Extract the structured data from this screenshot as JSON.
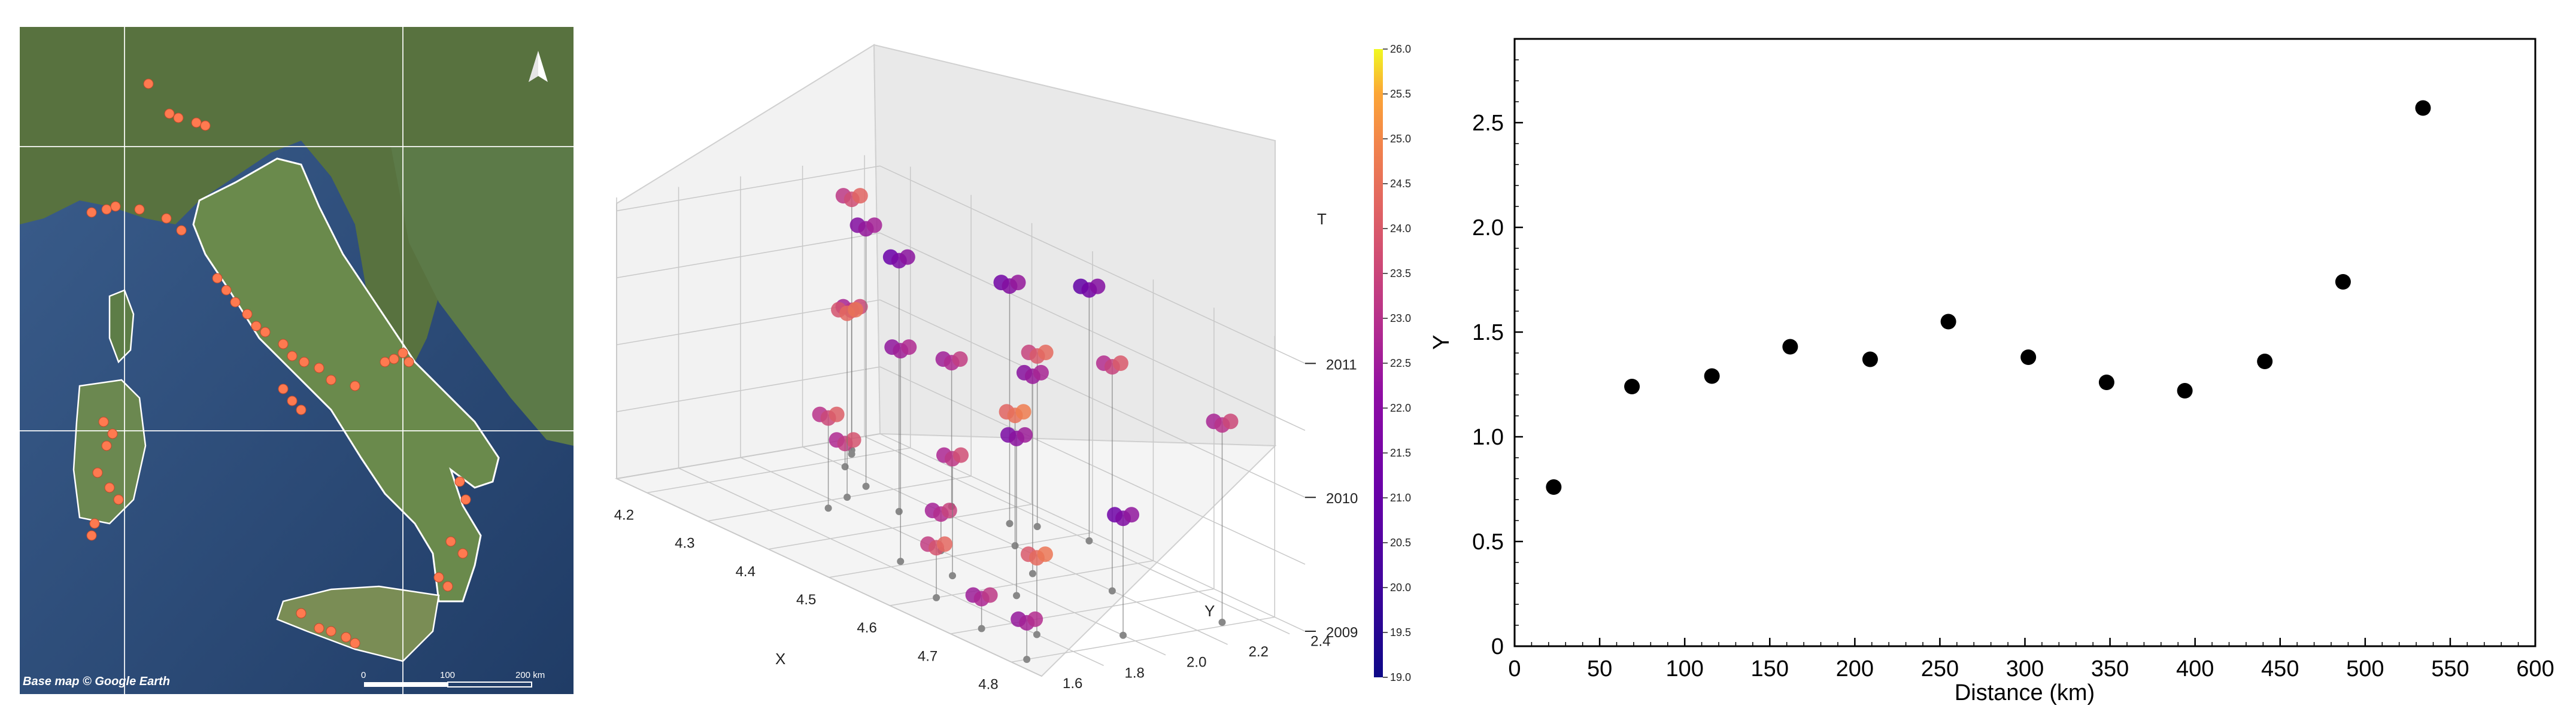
{
  "map": {
    "attribution": "Base map © Google Earth",
    "scale_labels": [
      "0",
      "100",
      "200 km"
    ],
    "north_arrow": "north-arrow-icon",
    "colors": {
      "marker": "#ff7a50",
      "coast": "#ffffff",
      "sea": "#2e4f7e",
      "land": "#5b7a44"
    }
  },
  "scatter3d": {
    "xlabel": "X",
    "ylabel": "Y",
    "zlabel": "T",
    "xticks": [
      "4.2",
      "4.3",
      "4.4",
      "4.5",
      "4.6",
      "4.7",
      "4.8"
    ],
    "yticks": [
      "1.6",
      "1.8",
      "2.0",
      "2.2",
      "2.4"
    ],
    "zticks": [
      "2009",
      "2010",
      "2011"
    ]
  },
  "colorbar": {
    "ticks": [
      "19.0",
      "19.5",
      "20.0",
      "20.5",
      "21.0",
      "21.5",
      "22.0",
      "22.5",
      "23.0",
      "23.5",
      "24.0",
      "24.5",
      "25.0",
      "25.5",
      "26.0"
    ],
    "min": 19.0,
    "max": 26.0
  },
  "chart_data": [
    {
      "type": "scatter",
      "title": "",
      "xlabel": "Distance  (km)",
      "ylabel": "Y",
      "xlim": [
        0,
        600
      ],
      "ylim": [
        0,
        2.9
      ],
      "xticks": [
        "0",
        "50",
        "100",
        "150",
        "200",
        "250",
        "300",
        "350",
        "400",
        "450",
        "500",
        "550",
        "600"
      ],
      "yticks": [
        "0",
        "0.5",
        "1.0",
        "1.5",
        "2.0",
        "2.5"
      ],
      "x": [
        23,
        69,
        116,
        162,
        209,
        255,
        302,
        348,
        394,
        441,
        487,
        534
      ],
      "y": [
        0.76,
        1.24,
        1.29,
        1.43,
        1.37,
        1.55,
        1.38,
        1.26,
        1.22,
        1.36,
        1.74,
        2.57
      ]
    },
    {
      "type": "scatter3d",
      "xlabel": "X",
      "ylabel": "Y",
      "zlabel": "T",
      "xlim": [
        4.15,
        4.85
      ],
      "ylim": [
        1.6,
        2.45
      ],
      "zlim": [
        2009,
        2011.1
      ],
      "color_label_range": [
        19.0,
        26.0
      ],
      "x": [
        4.18,
        4.19,
        4.22,
        4.28,
        4.3,
        4.32,
        4.36,
        4.37,
        4.44,
        4.46,
        4.48,
        4.49,
        4.5,
        4.52,
        4.55,
        4.58,
        4.6,
        4.63,
        4.66,
        4.7,
        4.74,
        4.78,
        4.79,
        4.8
      ],
      "y": [
        2.3,
        2.28,
        2.2,
        2.15,
        2.05,
        1.95,
        2.1,
        2.25,
        2.3,
        2.35,
        2.0,
        1.85,
        2.2,
        2.4,
        1.9,
        2.1,
        1.75,
        1.95,
        2.2,
        1.7,
        1.8,
        2.0,
        2.3,
        1.65
      ],
      "t": [
        2010.9,
        2010.1,
        2009.2,
        2010.95,
        2010.4,
        2009.7,
        2010.9,
        2010.1,
        2010.8,
        2010.3,
        2009.3,
        2010.6,
        2010.0,
        2010.9,
        2009.9,
        2010.5,
        2009.4,
        2010.2,
        2010.7,
        2009.25,
        2009.6,
        2009.9,
        2010.5,
        2009.3
      ],
      "c": [
        23.5,
        23.0,
        23.2,
        22.1,
        24.0,
        23.4,
        21.5,
        22.8,
        21.7,
        23.7,
        22.9,
        22.4,
        24.3,
        21.3,
        23.1,
        22.2,
        23.6,
        21.9,
        23.3,
        22.7,
        24.1,
        21.6,
        23.0,
        22.5
      ]
    }
  ]
}
